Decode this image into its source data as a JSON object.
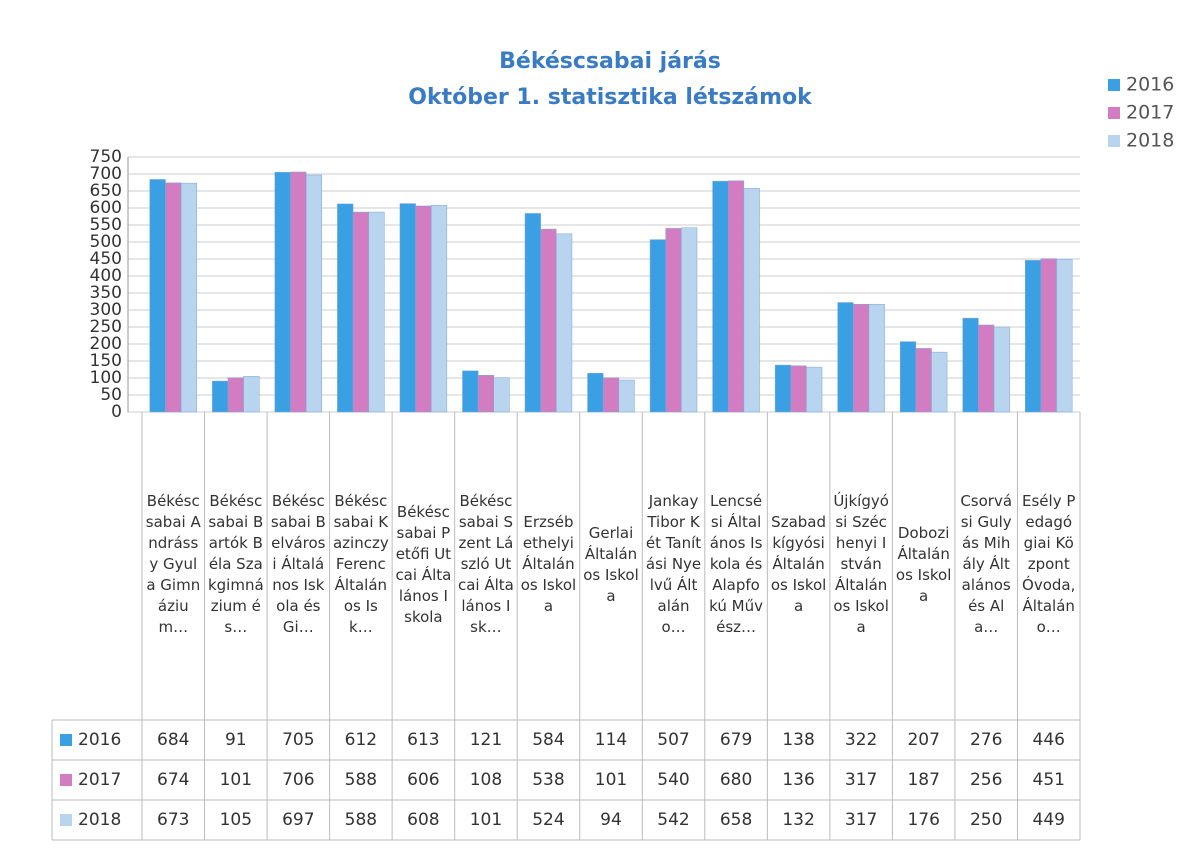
{
  "chart_data": {
    "type": "bar",
    "title": "Békéscsabai járás",
    "subtitle": "Október 1. statisztika létszámok",
    "categories": [
      "Békéscsabai Andrássy Gyula Gimnázium…",
      "Békéscsabai Bartók Béla Szakgimnázium és…",
      "Békéscsabai Belvárosi Általános Iskola és Gi…",
      "Békéscsabai Kazinczy Ferenc Általános Isk…",
      "Békéscsabai Petőfi Utcai Általános Iskola",
      "Békéscsabai Szent László Utcai Általános Isk…",
      "Erzsébethelyi Általános Iskola",
      "Gerlai Általános Iskola",
      "Jankay Tibor Két Tanítási Nyelvű Általáno…",
      "Lencsési Általános Iskola és Alapfokú Művész…",
      "Szabadkígyósi Általános Iskola",
      "Újkígyósi Széchenyi István Általános Iskola",
      "Dobozi Általános Iskola",
      "Csorvási Gulyás Mihály Általános és Ala…",
      "Esély Pedagógiai Központ Óvoda, Általáno…"
    ],
    "series": [
      {
        "name": "2016",
        "color": "#3a9fe3",
        "values": [
          684,
          91,
          705,
          612,
          613,
          121,
          584,
          114,
          507,
          679,
          138,
          322,
          207,
          276,
          446
        ]
      },
      {
        "name": "2017",
        "color": "#d27cc2",
        "values": [
          674,
          101,
          706,
          588,
          606,
          108,
          538,
          101,
          540,
          680,
          136,
          317,
          187,
          256,
          451
        ]
      },
      {
        "name": "2018",
        "color": "#b8d4ef",
        "values": [
          673,
          105,
          697,
          588,
          608,
          101,
          524,
          94,
          542,
          658,
          132,
          317,
          176,
          250,
          449
        ]
      }
    ],
    "ylim": [
      0,
      750
    ],
    "yticks": [
      0,
      50,
      100,
      150,
      200,
      250,
      300,
      350,
      400,
      450,
      500,
      550,
      600,
      650,
      700,
      750
    ],
    "grid": true,
    "legend": "top-right"
  }
}
